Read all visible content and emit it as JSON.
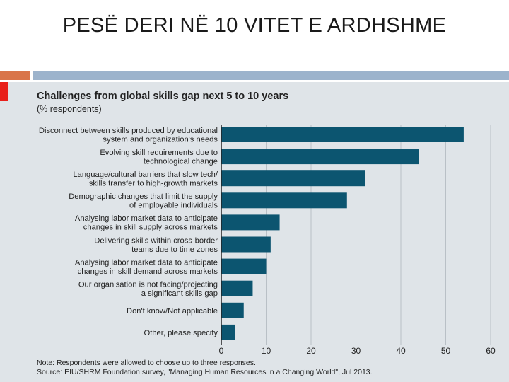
{
  "slide": {
    "title": "PESË DERI NË 10 VITET E ARDHSHME"
  },
  "colors": {
    "bar": "#0c5570",
    "panel": "#dfe4e8",
    "accent_orange": "#d9754a",
    "accent_blue": "#9cb3cc",
    "accent_red": "#e8201b"
  },
  "chart_data": {
    "type": "bar",
    "orientation": "horizontal",
    "title": "Challenges from global skills gap next 5 to 10 years",
    "subtitle": "(% respondents)",
    "categories": [
      [
        "Disconnect between skills produced by educational",
        "system and organization's needs"
      ],
      [
        "Evolving skill requirements due to",
        "technological change"
      ],
      [
        "Language/cultural barriers that slow tech/",
        "skills transfer to high-growth markets"
      ],
      [
        "Demographic changes that limit the supply",
        "of employable individuals"
      ],
      [
        "Analysing labor market data to anticipate",
        "changes in skill supply across markets"
      ],
      [
        "Delivering skills within cross-border",
        "teams due to time zones"
      ],
      [
        "Analysing labor market data to anticipate",
        "changes in skill demand across markets"
      ],
      [
        "Our organisation is not facing/projecting",
        "a significant skills gap"
      ],
      [
        "Don't know/Not applicable"
      ],
      [
        "Other, please specify"
      ]
    ],
    "values": [
      54,
      44,
      32,
      28,
      13,
      11,
      10,
      7,
      5,
      3
    ],
    "xlim": [
      0,
      60
    ],
    "xticks": [
      0,
      10,
      20,
      30,
      40,
      50,
      60
    ],
    "grid": "vertical",
    "note": "Note: Respondents were allowed to choose up to three responses.",
    "source": "Source: EIU/SHRM Foundation survey, \"Managing Human Resources in a Changing World\", Jul 2013."
  }
}
